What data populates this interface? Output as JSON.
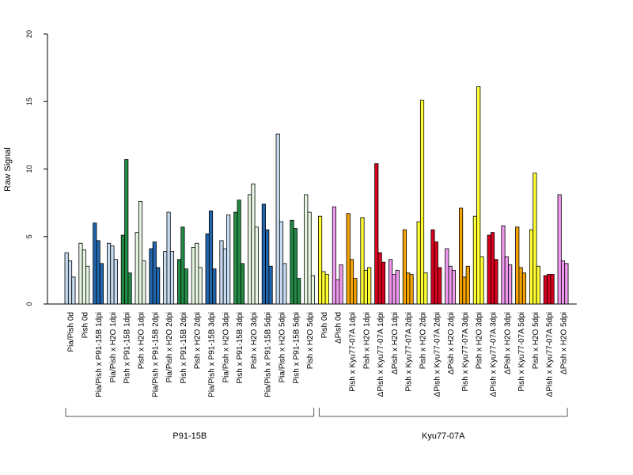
{
  "chart_data": {
    "type": "bar",
    "ylabel": "Raw Signal",
    "ylim": [
      0,
      20
    ],
    "yticks": [
      0,
      5,
      10,
      15,
      20
    ],
    "bars_per_category": 3,
    "categories": [
      "Pia/Pish 0d",
      "Pish 0d",
      "Pia/Pish x P91-15B 1dpi",
      "Pia/Pish x H2O 1dpi",
      "Pish x P91-15B 1dpi",
      "Pish x H2O 1dpi",
      "Pia/Pish x P91-15B 2dpi",
      "Pia/Pish x H2O 2dpi",
      "Pish x P91-15B 2dpi",
      "Pish x H2O 2dpi",
      "Pia/Pish x P91-15B 3dpi",
      "Pia/Pish x H2O 3dpi",
      "Pish x P91-15B 3dpi",
      "Pish x H2O 3dpi",
      "Pia/Pish x P91-15B 5dpi",
      "Pia/Pish x H2O 5dpi",
      "Pish x P91-15B 5dpi",
      "Pish x H2O 5dpi",
      "Pish 0d",
      "ΔPish 0d",
      "Pish x Kyu77-07A 1dpi",
      "Pish x H2O 1dpi",
      "ΔPish x Kyu77-07A 1dpi",
      "ΔPish x H2O 1dpi",
      "Pish x Kyu77-07A 2dpi",
      "Pish x H2O 2dpi",
      "ΔPish x Kyu77-07A 2dpi",
      "ΔPish x H2O 2dpi",
      "Pish x Kyu77-07A 3dpi",
      "Pish x H2O 3dpi",
      "ΔPish x Kyu77-07A 3dpi",
      "ΔPish x H2O 3dpi",
      "Pish x Kyu77-07A 5dpi",
      "Pish x H2O 5dpi",
      "ΔPish x Kyu77-07A 5dpi",
      "ΔPish x H2O 5dpi"
    ],
    "colors": [
      "#c6dbef",
      "#e5f5e0",
      "#2166ac",
      "#c6dbef",
      "#238b45",
      "#e5f5e0",
      "#2166ac",
      "#c6dbef",
      "#238b45",
      "#e5f5e0",
      "#2166ac",
      "#c6dbef",
      "#238b45",
      "#e5f5e0",
      "#2166ac",
      "#c6dbef",
      "#238b45",
      "#e5f5e0",
      "#ffff33",
      "#ee99ee",
      "#f5a300",
      "#ffff33",
      "#d7001f",
      "#ee99ee",
      "#f5a300",
      "#ffff33",
      "#d7001f",
      "#ee99ee",
      "#f5a300",
      "#ffff33",
      "#d7001f",
      "#ee99ee",
      "#f5a300",
      "#ffff33",
      "#d7001f",
      "#ee99ee"
    ],
    "values": [
      [
        3.8,
        3.2,
        2.0
      ],
      [
        4.5,
        4.0,
        2.8
      ],
      [
        6.0,
        4.7,
        3.0
      ],
      [
        4.5,
        4.3,
        3.3
      ],
      [
        5.1,
        10.7,
        2.3
      ],
      [
        5.3,
        7.6,
        3.2
      ],
      [
        4.1,
        4.6,
        2.7
      ],
      [
        3.9,
        6.8,
        3.9
      ],
      [
        3.3,
        5.7,
        2.6
      ],
      [
        4.2,
        4.5,
        2.7
      ],
      [
        5.2,
        6.9,
        2.6
      ],
      [
        4.7,
        4.1,
        6.6
      ],
      [
        6.8,
        7.7,
        3.0
      ],
      [
        8.1,
        8.9,
        5.7
      ],
      [
        7.4,
        5.5,
        2.8
      ],
      [
        12.6,
        6.1,
        3.0
      ],
      [
        6.2,
        5.6,
        1.9
      ],
      [
        8.1,
        6.8,
        2.1
      ],
      [
        6.5,
        2.4,
        2.2
      ],
      [
        7.2,
        1.8,
        2.9
      ],
      [
        6.7,
        3.3,
        1.9
      ],
      [
        6.4,
        2.5,
        2.7
      ],
      [
        10.4,
        3.8,
        3.1
      ],
      [
        3.3,
        2.2,
        2.5
      ],
      [
        5.5,
        2.3,
        2.2
      ],
      [
        6.1,
        15.1,
        2.3
      ],
      [
        5.5,
        4.6,
        2.7
      ],
      [
        4.1,
        2.8,
        2.5
      ],
      [
        7.1,
        2.0,
        2.8
      ],
      [
        6.5,
        16.1,
        3.5
      ],
      [
        5.1,
        5.3,
        3.3
      ],
      [
        5.8,
        3.5,
        2.9
      ],
      [
        5.7,
        2.7,
        2.3
      ],
      [
        5.5,
        9.7,
        2.8
      ],
      [
        2.1,
        2.2,
        2.2
      ],
      [
        8.1,
        3.2,
        3.0
      ]
    ],
    "groups": [
      {
        "label": "P91-15B",
        "from": 0,
        "to": 17
      },
      {
        "label": "Kyu77-07A",
        "from": 18,
        "to": 35
      }
    ]
  }
}
